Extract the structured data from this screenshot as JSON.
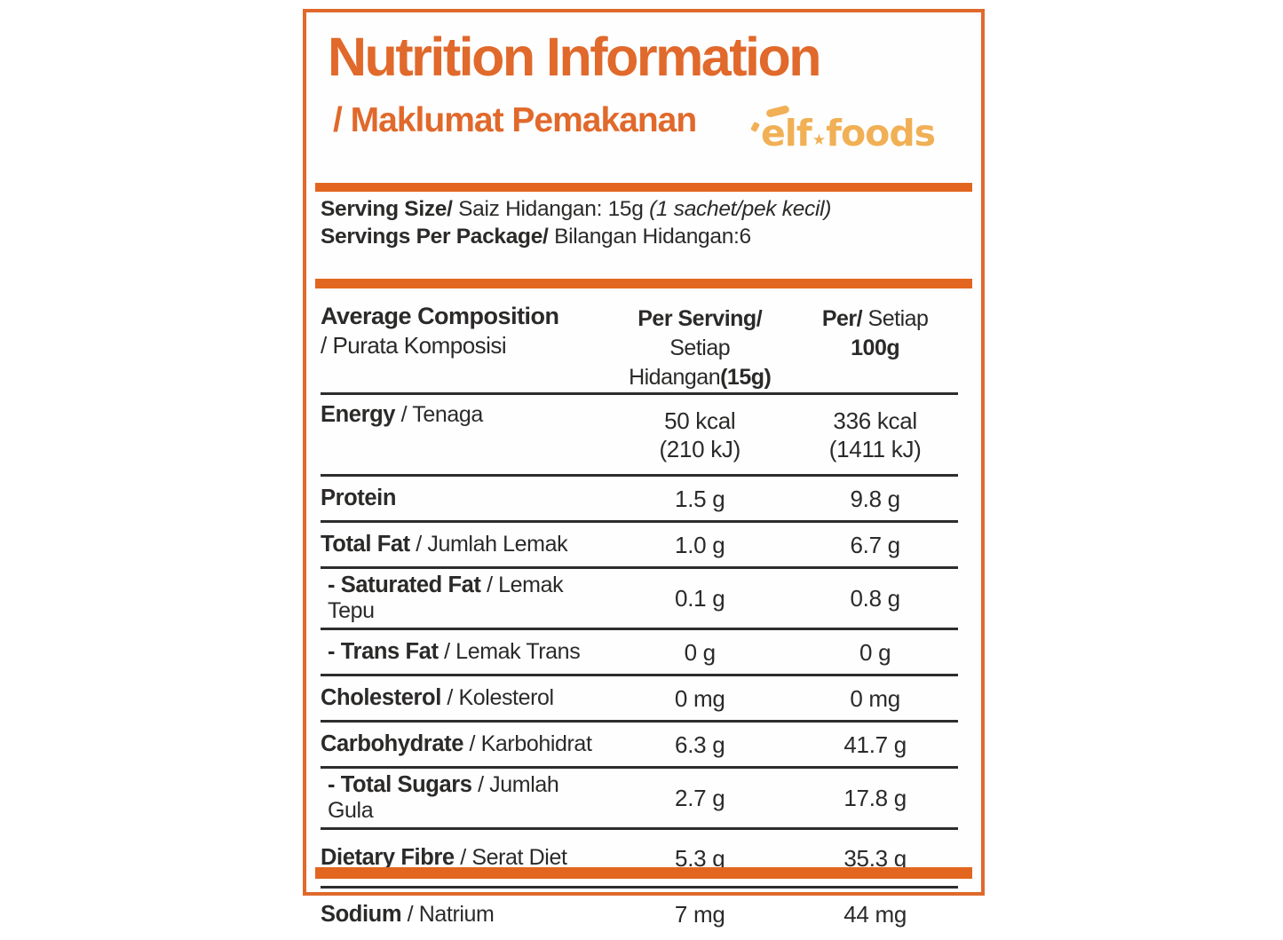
{
  "header": {
    "title": "Nutrition Information",
    "subtitle": "/ Maklumat Pemakanan",
    "logo_part1": "elf",
    "logo_star": "★",
    "logo_part2": "foods"
  },
  "serving": {
    "size_label": "Serving Size/",
    "size_value": " Saiz Hidangan: 15g ",
    "size_note": "(1 sachet/pek kecil)",
    "per_package_label": "Servings Per Package/",
    "per_package_value": " Bilangan Hidangan:6"
  },
  "table": {
    "header": {
      "col1_bold": "Average Composition",
      "col1_regular": "/ Purata Komposisi",
      "col2_line1": "Per Serving/",
      "col2_line2_regular": "Setiap Hidangan",
      "col2_line2_bold": "(15g)",
      "col3_line1_bold": "Per/",
      "col3_line1_regular": " Setiap",
      "col3_line2": "100g"
    },
    "rows": [
      {
        "label_bold": "Energy",
        "label_rest": " / Tenaga",
        "per_serving": [
          "50 kcal",
          "(210 kJ)"
        ],
        "per_100g": [
          "336 kcal",
          "(1411 kJ)"
        ],
        "style": "tall"
      },
      {
        "label_bold": "Protein",
        "label_rest": "",
        "per_serving": [
          "1.5 g"
        ],
        "per_100g": [
          "9.8 g"
        ],
        "style": ""
      },
      {
        "label_bold": "Total Fat",
        "label_rest": " / Jumlah Lemak",
        "per_serving": [
          "1.0 g"
        ],
        "per_100g": [
          "6.7 g"
        ],
        "style": ""
      },
      {
        "label_bold": "- Saturated Fat",
        "label_rest": " / Lemak Tepu",
        "per_serving": [
          "0.1 g"
        ],
        "per_100g": [
          "0.8 g"
        ],
        "style": "indent"
      },
      {
        "label_bold": "- Trans Fat",
        "label_rest": " / Lemak Trans",
        "per_serving": [
          "0 g"
        ],
        "per_100g": [
          "0 g"
        ],
        "style": "indent"
      },
      {
        "label_bold": "Cholesterol",
        "label_rest": " / Kolesterol",
        "per_serving": [
          "0 mg"
        ],
        "per_100g": [
          "0 mg"
        ],
        "style": ""
      },
      {
        "label_bold": "Carbohydrate",
        "label_rest": " / Karbohidrat",
        "per_serving": [
          "6.3 g"
        ],
        "per_100g": [
          "41.7 g"
        ],
        "style": ""
      },
      {
        "label_bold": "- Total Sugars",
        "label_rest": " / Jumlah Gula",
        "per_serving": [
          "2.7 g"
        ],
        "per_100g": [
          "17.8 g"
        ],
        "style": "indent"
      },
      {
        "label_bold": "Dietary Fibre",
        "label_rest": " / Serat Diet",
        "per_serving": [
          "5.3 g"
        ],
        "per_100g": [
          "35.3 g"
        ],
        "style": ""
      },
      {
        "label_bold": "Sodium",
        "label_rest": " / Natrium",
        "per_serving": [
          "7 mg"
        ],
        "per_100g": [
          "44 mg"
        ],
        "style": ""
      }
    ]
  },
  "colors": {
    "accent_orange": "#e2661f",
    "title_orange": "#e0692b",
    "logo_gold": "#f1b055",
    "text_ink": "#2b2a29"
  }
}
